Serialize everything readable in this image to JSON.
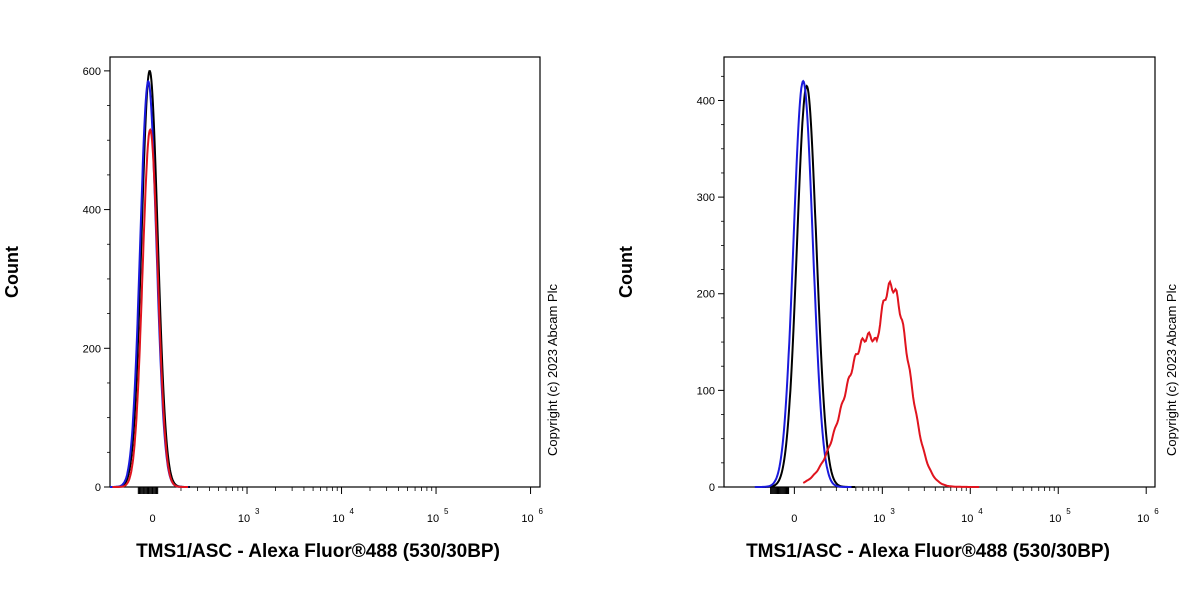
{
  "colors": {
    "black": "#000000",
    "blue": "#1a1adc",
    "red": "#e0141e"
  },
  "chart_data": [
    {
      "type": "line",
      "subtype": "flow-cytometry-histogram",
      "xlabel": "TMS1/ASC - Alexa Fluor®488 (530/30BP)",
      "ylabel": "Count",
      "ylim": [
        0,
        620
      ],
      "xlim_log": [
        1.55,
        6.1
      ],
      "yticks": [
        0,
        200,
        400,
        600
      ],
      "ytick_labels": [
        "0",
        "200",
        "400",
        "600"
      ],
      "xticks": [
        {
          "v": 2.0,
          "base": "0",
          "exp": ""
        },
        {
          "v": 3.0,
          "base": "10",
          "exp": "3"
        },
        {
          "v": 4.0,
          "base": "10",
          "exp": "4"
        },
        {
          "v": 5.0,
          "base": "10",
          "exp": "5"
        },
        {
          "v": 6.0,
          "base": "10",
          "exp": "6"
        }
      ],
      "copyright": "Copyright (c) 2023 Abcam Plc",
      "series": [
        {
          "name": "black",
          "color": "#000000",
          "center": 1.97,
          "width": 0.085,
          "peak": 600
        },
        {
          "name": "blue",
          "color": "#1a1adc",
          "center": 1.955,
          "width": 0.085,
          "peak": 585
        },
        {
          "name": "red",
          "color": "#e0141e",
          "center": 1.975,
          "width": 0.08,
          "peak": 515
        }
      ]
    },
    {
      "type": "line",
      "subtype": "flow-cytometry-histogram",
      "xlabel": "TMS1/ASC - Alexa Fluor®488 (530/30BP)",
      "ylabel": "Count",
      "ylim": [
        0,
        445
      ],
      "xlim_log": [
        1.2,
        6.1
      ],
      "yticks": [
        0,
        100,
        200,
        300,
        400
      ],
      "ytick_labels": [
        "0",
        "100",
        "200",
        "300",
        "400"
      ],
      "xticks": [
        {
          "v": 2.0,
          "base": "0",
          "exp": ""
        },
        {
          "v": 3.0,
          "base": "10",
          "exp": "3"
        },
        {
          "v": 4.0,
          "base": "10",
          "exp": "4"
        },
        {
          "v": 5.0,
          "base": "10",
          "exp": "5"
        },
        {
          "v": 6.0,
          "base": "10",
          "exp": "6"
        }
      ],
      "copyright": "Copyright (c) 2023 Abcam Plc",
      "series": [
        {
          "name": "black",
          "color": "#000000",
          "center": 2.14,
          "width": 0.11,
          "peak": 415
        },
        {
          "name": "blue",
          "color": "#1a1adc",
          "center": 2.1,
          "width": 0.11,
          "peak": 420
        },
        {
          "name": "red",
          "color": "#e0141e",
          "center": 3.1,
          "width": 0.2,
          "peak": 208
        }
      ]
    }
  ]
}
